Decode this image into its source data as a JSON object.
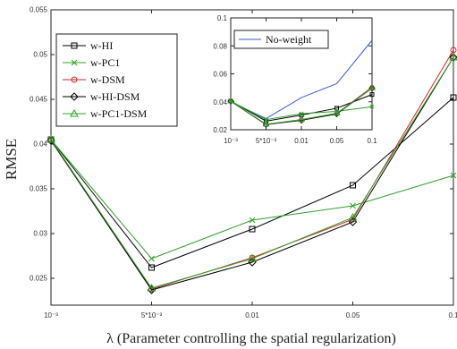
{
  "chart_data": [
    {
      "type": "line",
      "categories": [
        "10⁻³",
        "5*10⁻³",
        "0.01",
        "0.05",
        "0.1"
      ],
      "xlabel": "λ (Parameter controlling the spatial regularization)",
      "ylabel": "RMSE",
      "ylim": [
        0.022,
        0.055
      ],
      "yticks": [
        "0.025",
        "0.03",
        "0.035",
        "0.04",
        "0.045",
        "0.05",
        "0.055"
      ],
      "legend": "top-left",
      "series": [
        {
          "name": "w-HI",
          "color": "#000000",
          "marker": "square",
          "values": [
            0.0405,
            0.0262,
            0.0305,
            0.0354,
            0.0452
          ]
        },
        {
          "name": "w-PC1",
          "color": "#33a02c",
          "marker": "x",
          "values": [
            0.0405,
            0.0272,
            0.0315,
            0.0331,
            0.0365
          ]
        },
        {
          "name": "w-DSM",
          "color": "#d62728",
          "marker": "circle",
          "values": [
            0.0404,
            0.0238,
            0.0273,
            0.0316,
            0.0505
          ]
        },
        {
          "name": "w-HI-DSM",
          "color": "#000000",
          "marker": "diamond",
          "values": [
            0.0404,
            0.0237,
            0.0268,
            0.0313,
            0.0497
          ]
        },
        {
          "name": "w-PC1-DSM",
          "color": "#33a02c",
          "marker": "triangle",
          "values": [
            0.0405,
            0.0239,
            0.0272,
            0.0318,
            0.0497
          ]
        }
      ]
    },
    {
      "type": "line",
      "categories": [
        "10⁻³",
        "5*10⁻³",
        "0.01",
        "0.05",
        "0.1"
      ],
      "ylim": [
        0.02,
        0.1
      ],
      "yticks": [
        "0.02",
        "0.04",
        "0.06",
        "0.08",
        "0.1"
      ],
      "legend": "top-left",
      "series": [
        {
          "name": "No-weight",
          "color": "#3a5bd9",
          "marker": "none",
          "values": [
            0.04,
            0.028,
            0.043,
            0.053,
            0.084
          ]
        },
        {
          "name": "w-HI",
          "color": "#000000",
          "marker": "square",
          "values": [
            0.0405,
            0.0262,
            0.0305,
            0.0354,
            0.0452
          ]
        },
        {
          "name": "w-PC1",
          "color": "#33a02c",
          "marker": "x",
          "values": [
            0.0405,
            0.0272,
            0.0315,
            0.0331,
            0.0365
          ]
        },
        {
          "name": "w-DSM",
          "color": "#d62728",
          "marker": "circle",
          "values": [
            0.0404,
            0.0238,
            0.0273,
            0.0316,
            0.0505
          ]
        },
        {
          "name": "w-HI-DSM",
          "color": "#000000",
          "marker": "diamond",
          "values": [
            0.0404,
            0.0237,
            0.0268,
            0.0313,
            0.0497
          ]
        },
        {
          "name": "w-PC1-DSM",
          "color": "#33a02c",
          "marker": "triangle",
          "values": [
            0.0405,
            0.0239,
            0.0272,
            0.0318,
            0.0497
          ]
        }
      ]
    }
  ]
}
